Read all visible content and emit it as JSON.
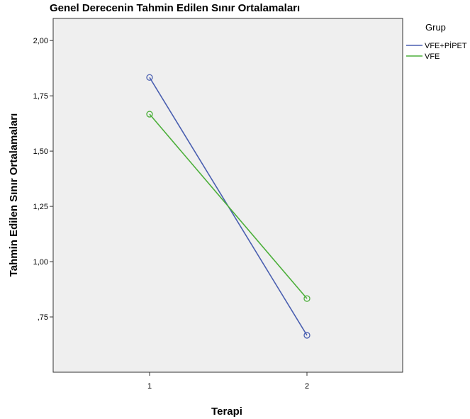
{
  "chart_data": {
    "type": "line",
    "title": "Genel Derecenin Tahmin Edilen Sınır Ortalamaları",
    "xlabel": "Terapi",
    "ylabel": "Tahmin Edilen Sınır Ortalamaları",
    "categories": [
      "1",
      "2"
    ],
    "ylim": [
      0.5,
      2.1
    ],
    "yticks": [
      0.75,
      1.0,
      1.25,
      1.5,
      1.75,
      2.0
    ],
    "ytick_labels": [
      ",75",
      "1,00",
      "1,25",
      "1,50",
      "1,75",
      "2,00"
    ],
    "grid": false,
    "legend_title": "Grup",
    "legend_position": "top-right, outside plot",
    "series": [
      {
        "name": "VFE+PİPET",
        "color": "#4a5fb0",
        "values": [
          1.833,
          0.667
        ]
      },
      {
        "name": "VFE",
        "color": "#4caf3a",
        "values": [
          1.667,
          0.833
        ]
      }
    ],
    "plot_background": "#efefef"
  }
}
